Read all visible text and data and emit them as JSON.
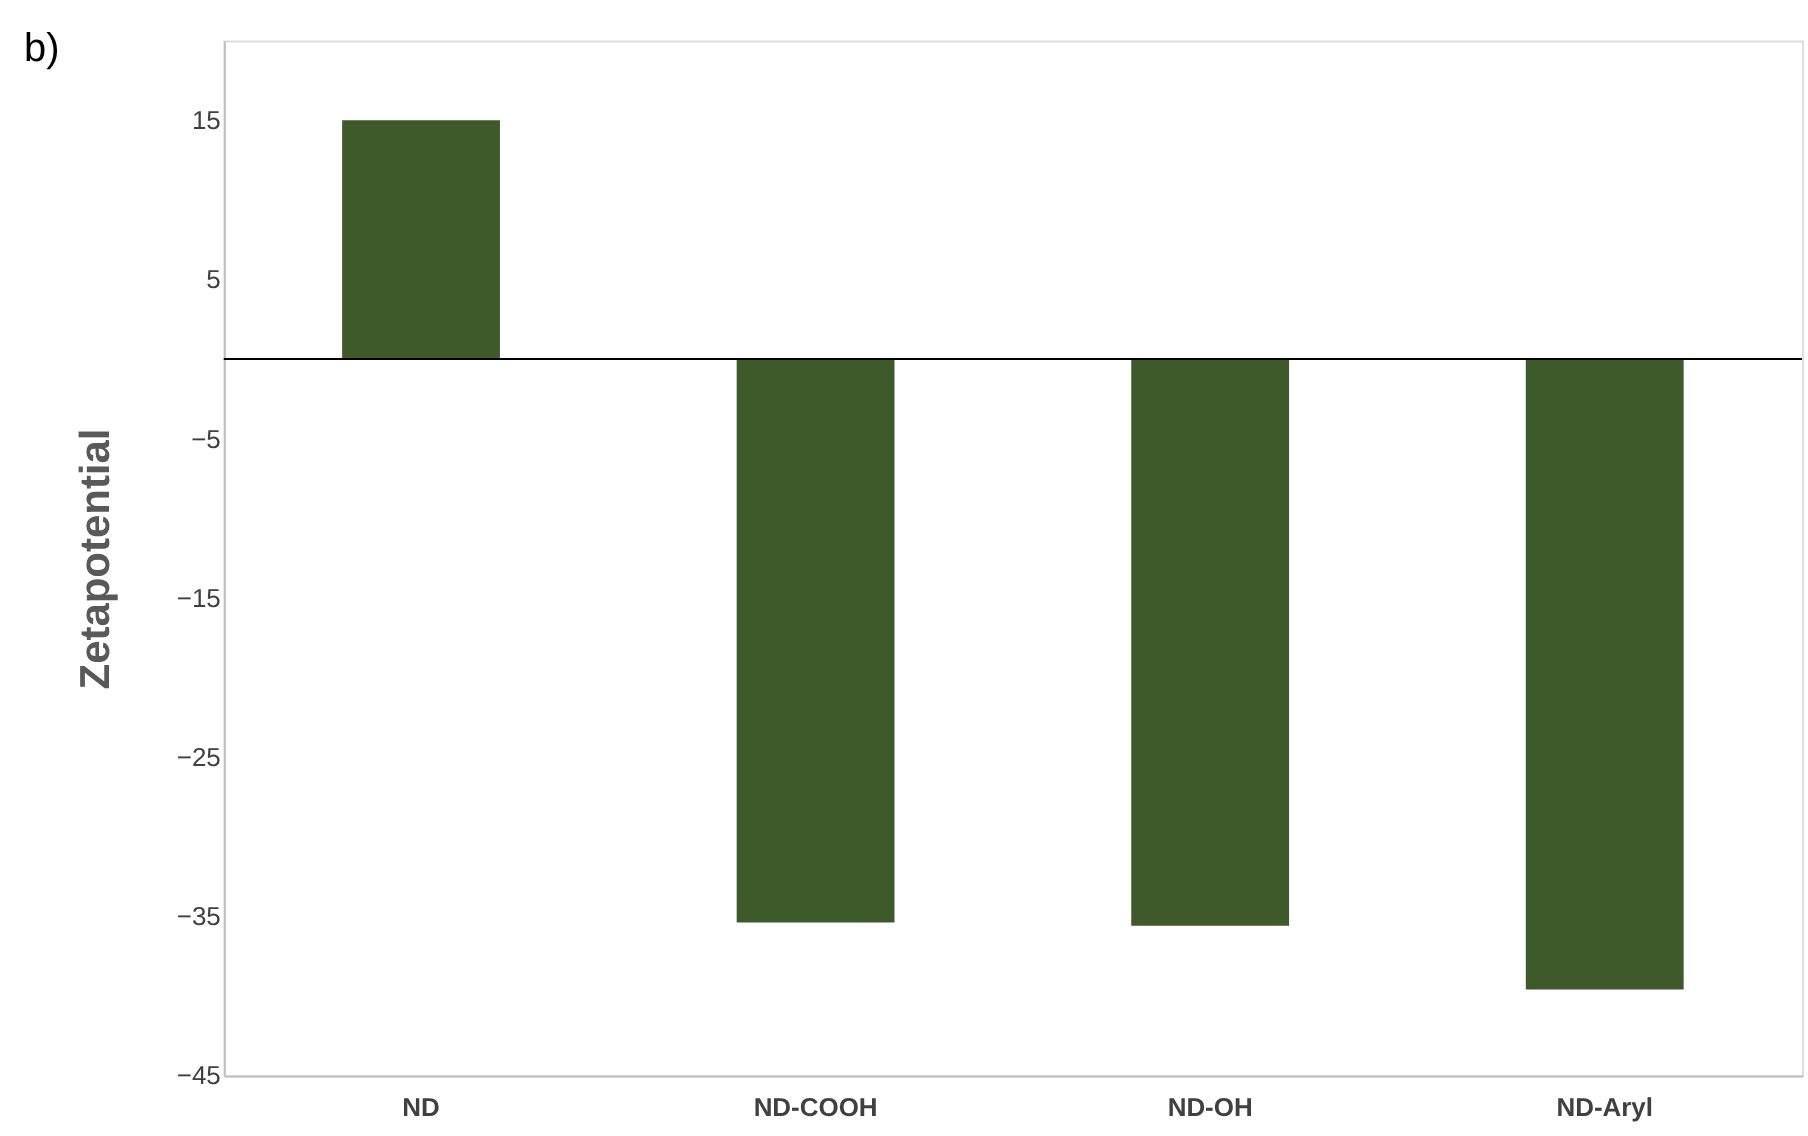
{
  "chart_data": {
    "type": "bar",
    "categories": [
      "ND",
      "ND-COOH",
      "ND-OH",
      "ND-Aryl"
    ],
    "values": [
      15,
      -35.4,
      -35.6,
      -39.6
    ],
    "color": "#3f5a2a",
    "ylabel": "Zetapotential",
    "ylim": [
      -45,
      20
    ],
    "yticks": [
      -45,
      -35,
      -25,
      -15,
      -5,
      5,
      15
    ],
    "ref_lines": [
      {
        "axis": "y",
        "value": 0
      }
    ],
    "annotations": [
      "b)"
    ]
  }
}
